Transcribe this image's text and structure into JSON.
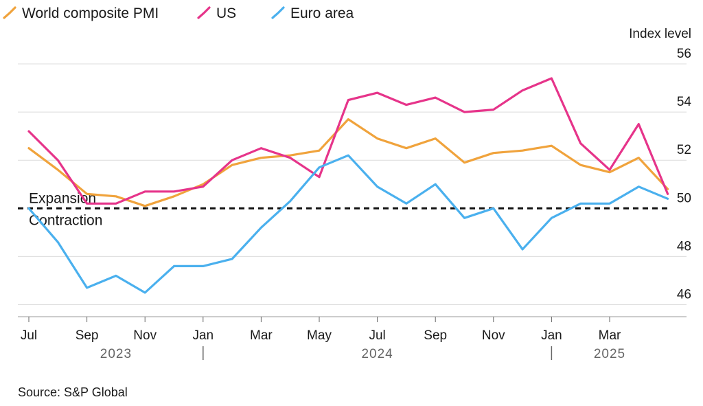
{
  "chart_data": {
    "type": "line",
    "categories": [
      "Jul 2023",
      "Aug 2023",
      "Sep 2023",
      "Oct 2023",
      "Nov 2023",
      "Dec 2023",
      "Jan 2024",
      "Feb 2024",
      "Mar 2024",
      "Apr 2024",
      "May 2024",
      "Jun 2024",
      "Jul 2024",
      "Aug 2024",
      "Sep 2024",
      "Oct 2024",
      "Nov 2024",
      "Dec 2024",
      "Jan 2025",
      "Feb 2025",
      "Mar 2025",
      "Apr 2025",
      "May 2025"
    ],
    "series": [
      {
        "name": "World composite PMI",
        "color": "#f0a33c",
        "values": [
          52.5,
          51.6,
          50.6,
          50.5,
          50.1,
          50.5,
          51.0,
          51.8,
          52.1,
          52.2,
          52.4,
          53.7,
          52.9,
          52.5,
          52.9,
          51.9,
          52.3,
          52.4,
          52.6,
          51.8,
          51.5,
          52.1,
          50.8
        ]
      },
      {
        "name": "US",
        "color": "#e6348a",
        "values": [
          53.2,
          52.0,
          50.2,
          50.2,
          50.7,
          50.7,
          50.9,
          52.0,
          52.5,
          52.1,
          51.3,
          54.5,
          54.8,
          54.3,
          54.6,
          54.0,
          54.1,
          54.9,
          55.4,
          52.7,
          51.6,
          53.5,
          50.6
        ]
      },
      {
        "name": "Euro area",
        "color": "#4ab0ee",
        "values": [
          50.0,
          48.6,
          46.7,
          47.2,
          46.5,
          47.6,
          47.6,
          47.9,
          49.2,
          50.3,
          51.7,
          52.2,
          50.9,
          50.2,
          51.0,
          49.6,
          50.0,
          48.3,
          49.6,
          50.2,
          50.2,
          50.9,
          50.4
        ]
      }
    ],
    "threshold": {
      "value": 50,
      "above_label": "Expansion",
      "below_label": "Contraction"
    },
    "ylabel": "Index level",
    "ylim": [
      45.5,
      56.5
    ],
    "yticks": [
      46,
      48,
      50,
      52,
      54,
      56
    ],
    "yticklabels": [
      "46",
      "48",
      "50",
      "52",
      "54",
      "56"
    ],
    "xticks": [
      {
        "index": 0,
        "label": "Jul"
      },
      {
        "index": 2,
        "label": "Sep"
      },
      {
        "index": 4,
        "label": "Nov"
      },
      {
        "index": 6,
        "label": "Jan"
      },
      {
        "index": 8,
        "label": "Mar"
      },
      {
        "index": 10,
        "label": "May"
      },
      {
        "index": 12,
        "label": "Jul"
      },
      {
        "index": 14,
        "label": "Sep"
      },
      {
        "index": 16,
        "label": "Nov"
      },
      {
        "index": 18,
        "label": "Jan"
      },
      {
        "index": 20,
        "label": "Mar"
      }
    ],
    "years": [
      {
        "label": "2023",
        "center_index": 3
      },
      {
        "label": "2024",
        "center_index": 12
      },
      {
        "label": "2025",
        "center_index": 20
      }
    ],
    "year_separators": [
      6,
      18
    ],
    "legend": "top-left",
    "source": "Source: S&P Global"
  }
}
